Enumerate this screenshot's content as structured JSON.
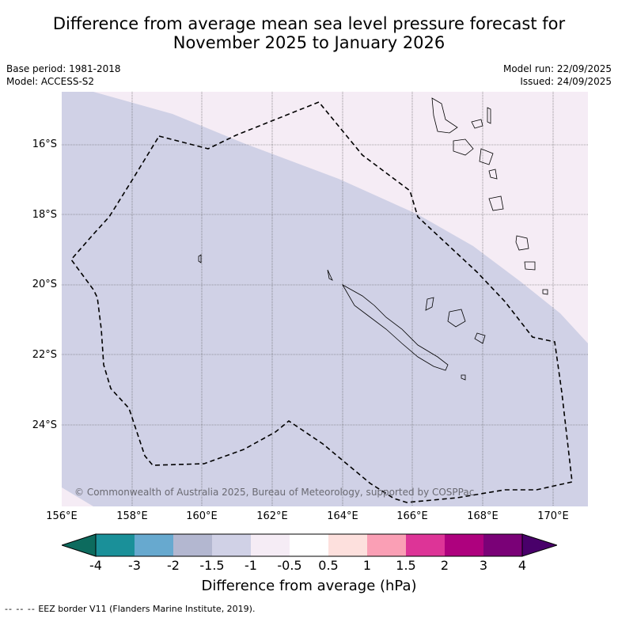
{
  "title_line1": "Difference from average mean sea level pressure forecast for",
  "title_line2": "November 2025 to January 2026",
  "meta_left": {
    "base_period": "Base period: 1981-2018",
    "model": "Model: ACCESS-S2"
  },
  "meta_right": {
    "model_run": "Model run: 22/09/2025",
    "issued": "Issued: 24/09/2025"
  },
  "lat_labels": [
    "16°S",
    "18°S",
    "20°S",
    "22°S",
    "24°S"
  ],
  "lon_labels": [
    "156°E",
    "158°E",
    "160°E",
    "162°E",
    "164°E",
    "166°E",
    "168°E",
    "170°E"
  ],
  "copyright": "© Commonwealth of Australia 2025, Bureau of Meteorology, supported by COSPPac",
  "colorbar": {
    "ticks": [
      "-4",
      "-3",
      "-2",
      "-1.5",
      "-1",
      "-0.5",
      "0.5",
      "1",
      "1.5",
      "2",
      "3",
      "4"
    ],
    "colors": [
      "#0d6b5e",
      "#1a9099",
      "#67a9cf",
      "#b3b7d0",
      "#d0d1e6",
      "#f5ecf5",
      "#ffffff",
      "#fde0dd",
      "#fa9fb5",
      "#dd3497",
      "#ae017e",
      "#7a0177",
      "#49006a"
    ],
    "title": "Difference from average (hPa)"
  },
  "footer": {
    "dashes": "-- -- --",
    "text": "EEZ border V11 (Flanders Marine Institute, 2019)."
  },
  "map_colors": {
    "below": "#d0d1e6",
    "near_zero": "#f5ecf5",
    "grid": "#555555"
  }
}
